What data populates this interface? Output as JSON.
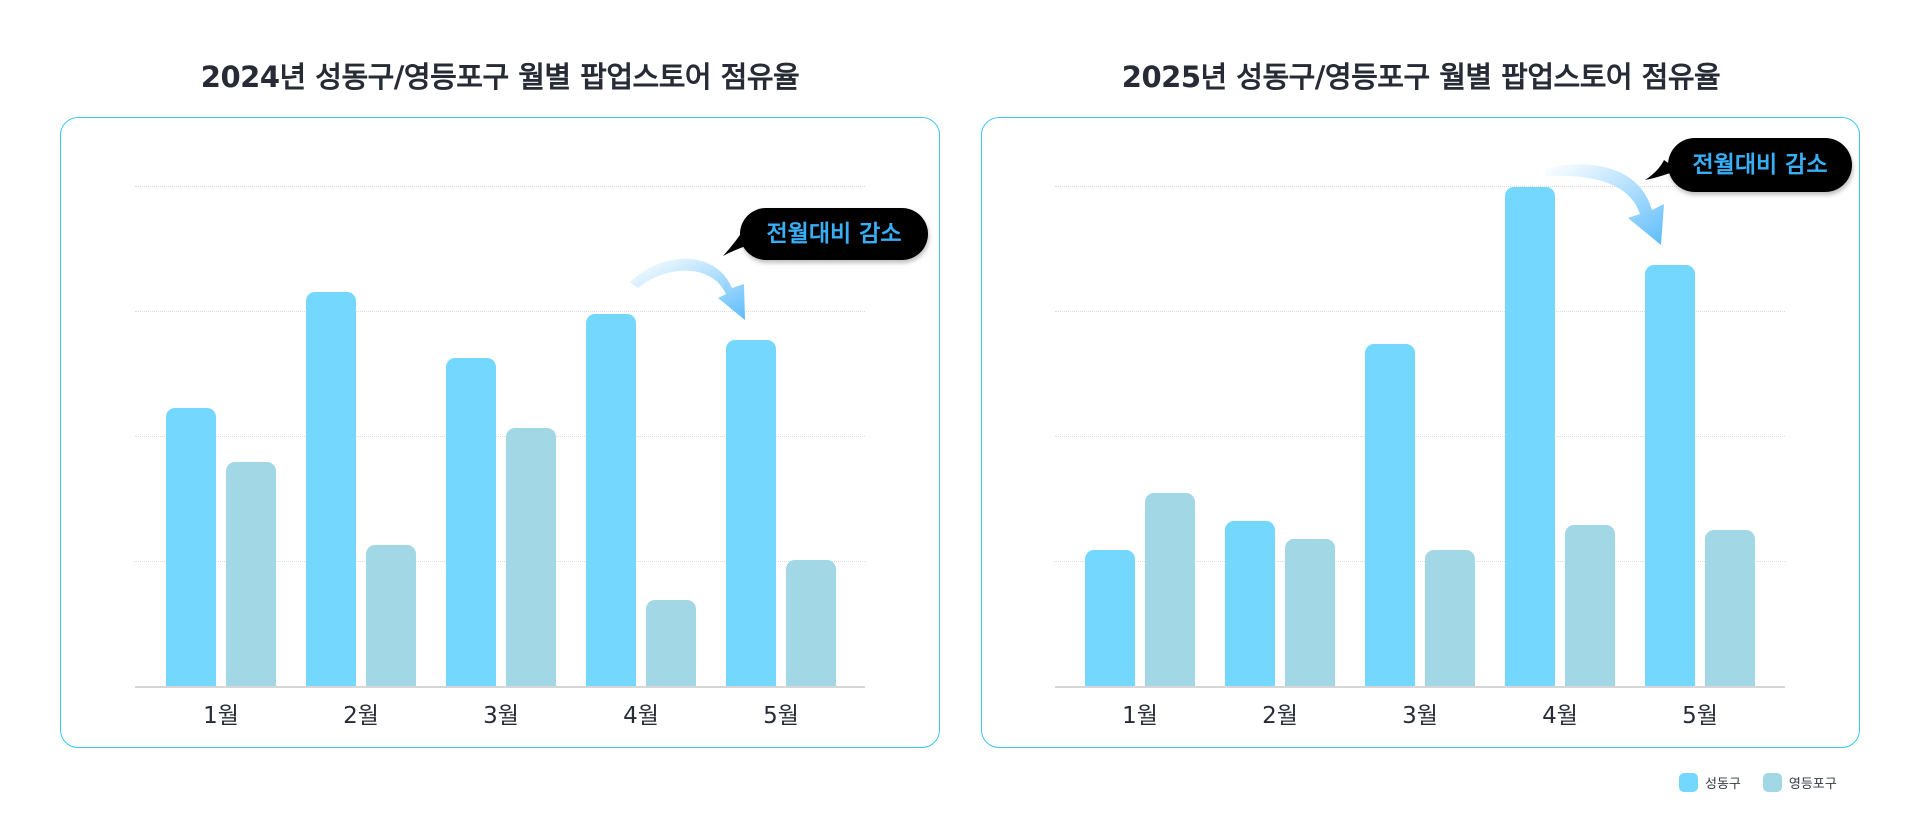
{
  "colors": {
    "seongdong": "#73d7fe",
    "yeongdeungpo": "#a2d7e5",
    "card_border": "#3cc6f2",
    "callout_bg": "#000000",
    "callout_text": "#38aef5",
    "title_text": "#262b36"
  },
  "legend": {
    "items": [
      {
        "label": "성동구",
        "color": "#73d7fe"
      },
      {
        "label": "영등포구",
        "color": "#a2d7e5"
      }
    ]
  },
  "chart_data": [
    {
      "type": "bar",
      "title": "2024년 성동구/영등포구 월별 팝업스토어 점유율",
      "xlabel": "",
      "ylabel": "",
      "categories": [
        "1월",
        "2월",
        "3월",
        "4월",
        "5월"
      ],
      "series": [
        {
          "name": "성동구",
          "values": [
            55.6,
            78.8,
            65.6,
            74.4,
            69.2
          ]
        },
        {
          "name": "영등포구",
          "values": [
            44.8,
            28.2,
            51.6,
            17.2,
            25.2
          ]
        }
      ],
      "ylim": [
        0,
        100
      ],
      "y_gridlines": [
        25,
        50,
        75,
        100
      ],
      "y_tick_labels_visible": false,
      "grid": true,
      "legend_position": "bottom-right",
      "annotation": {
        "text": "전월대비 감소",
        "from_category": "4월",
        "to_category": "5월",
        "series": "성동구"
      }
    },
    {
      "type": "bar",
      "title": "2025년 성동구/영등포구 월별 팝업스토어 점유율",
      "xlabel": "",
      "ylabel": "",
      "categories": [
        "1월",
        "2월",
        "3월",
        "4월",
        "5월"
      ],
      "series": [
        {
          "name": "성동구",
          "values": [
            27.2,
            33.0,
            68.4,
            99.8,
            84.2
          ]
        },
        {
          "name": "영등포구",
          "values": [
            38.6,
            29.4,
            27.2,
            32.2,
            31.2
          ]
        }
      ],
      "ylim": [
        0,
        100
      ],
      "y_gridlines": [
        25,
        50,
        75,
        100
      ],
      "y_tick_labels_visible": false,
      "grid": true,
      "legend_position": "bottom-right",
      "annotation": {
        "text": "전월대비 감소",
        "from_category": "4월",
        "to_category": "5월",
        "series": "성동구"
      }
    }
  ]
}
